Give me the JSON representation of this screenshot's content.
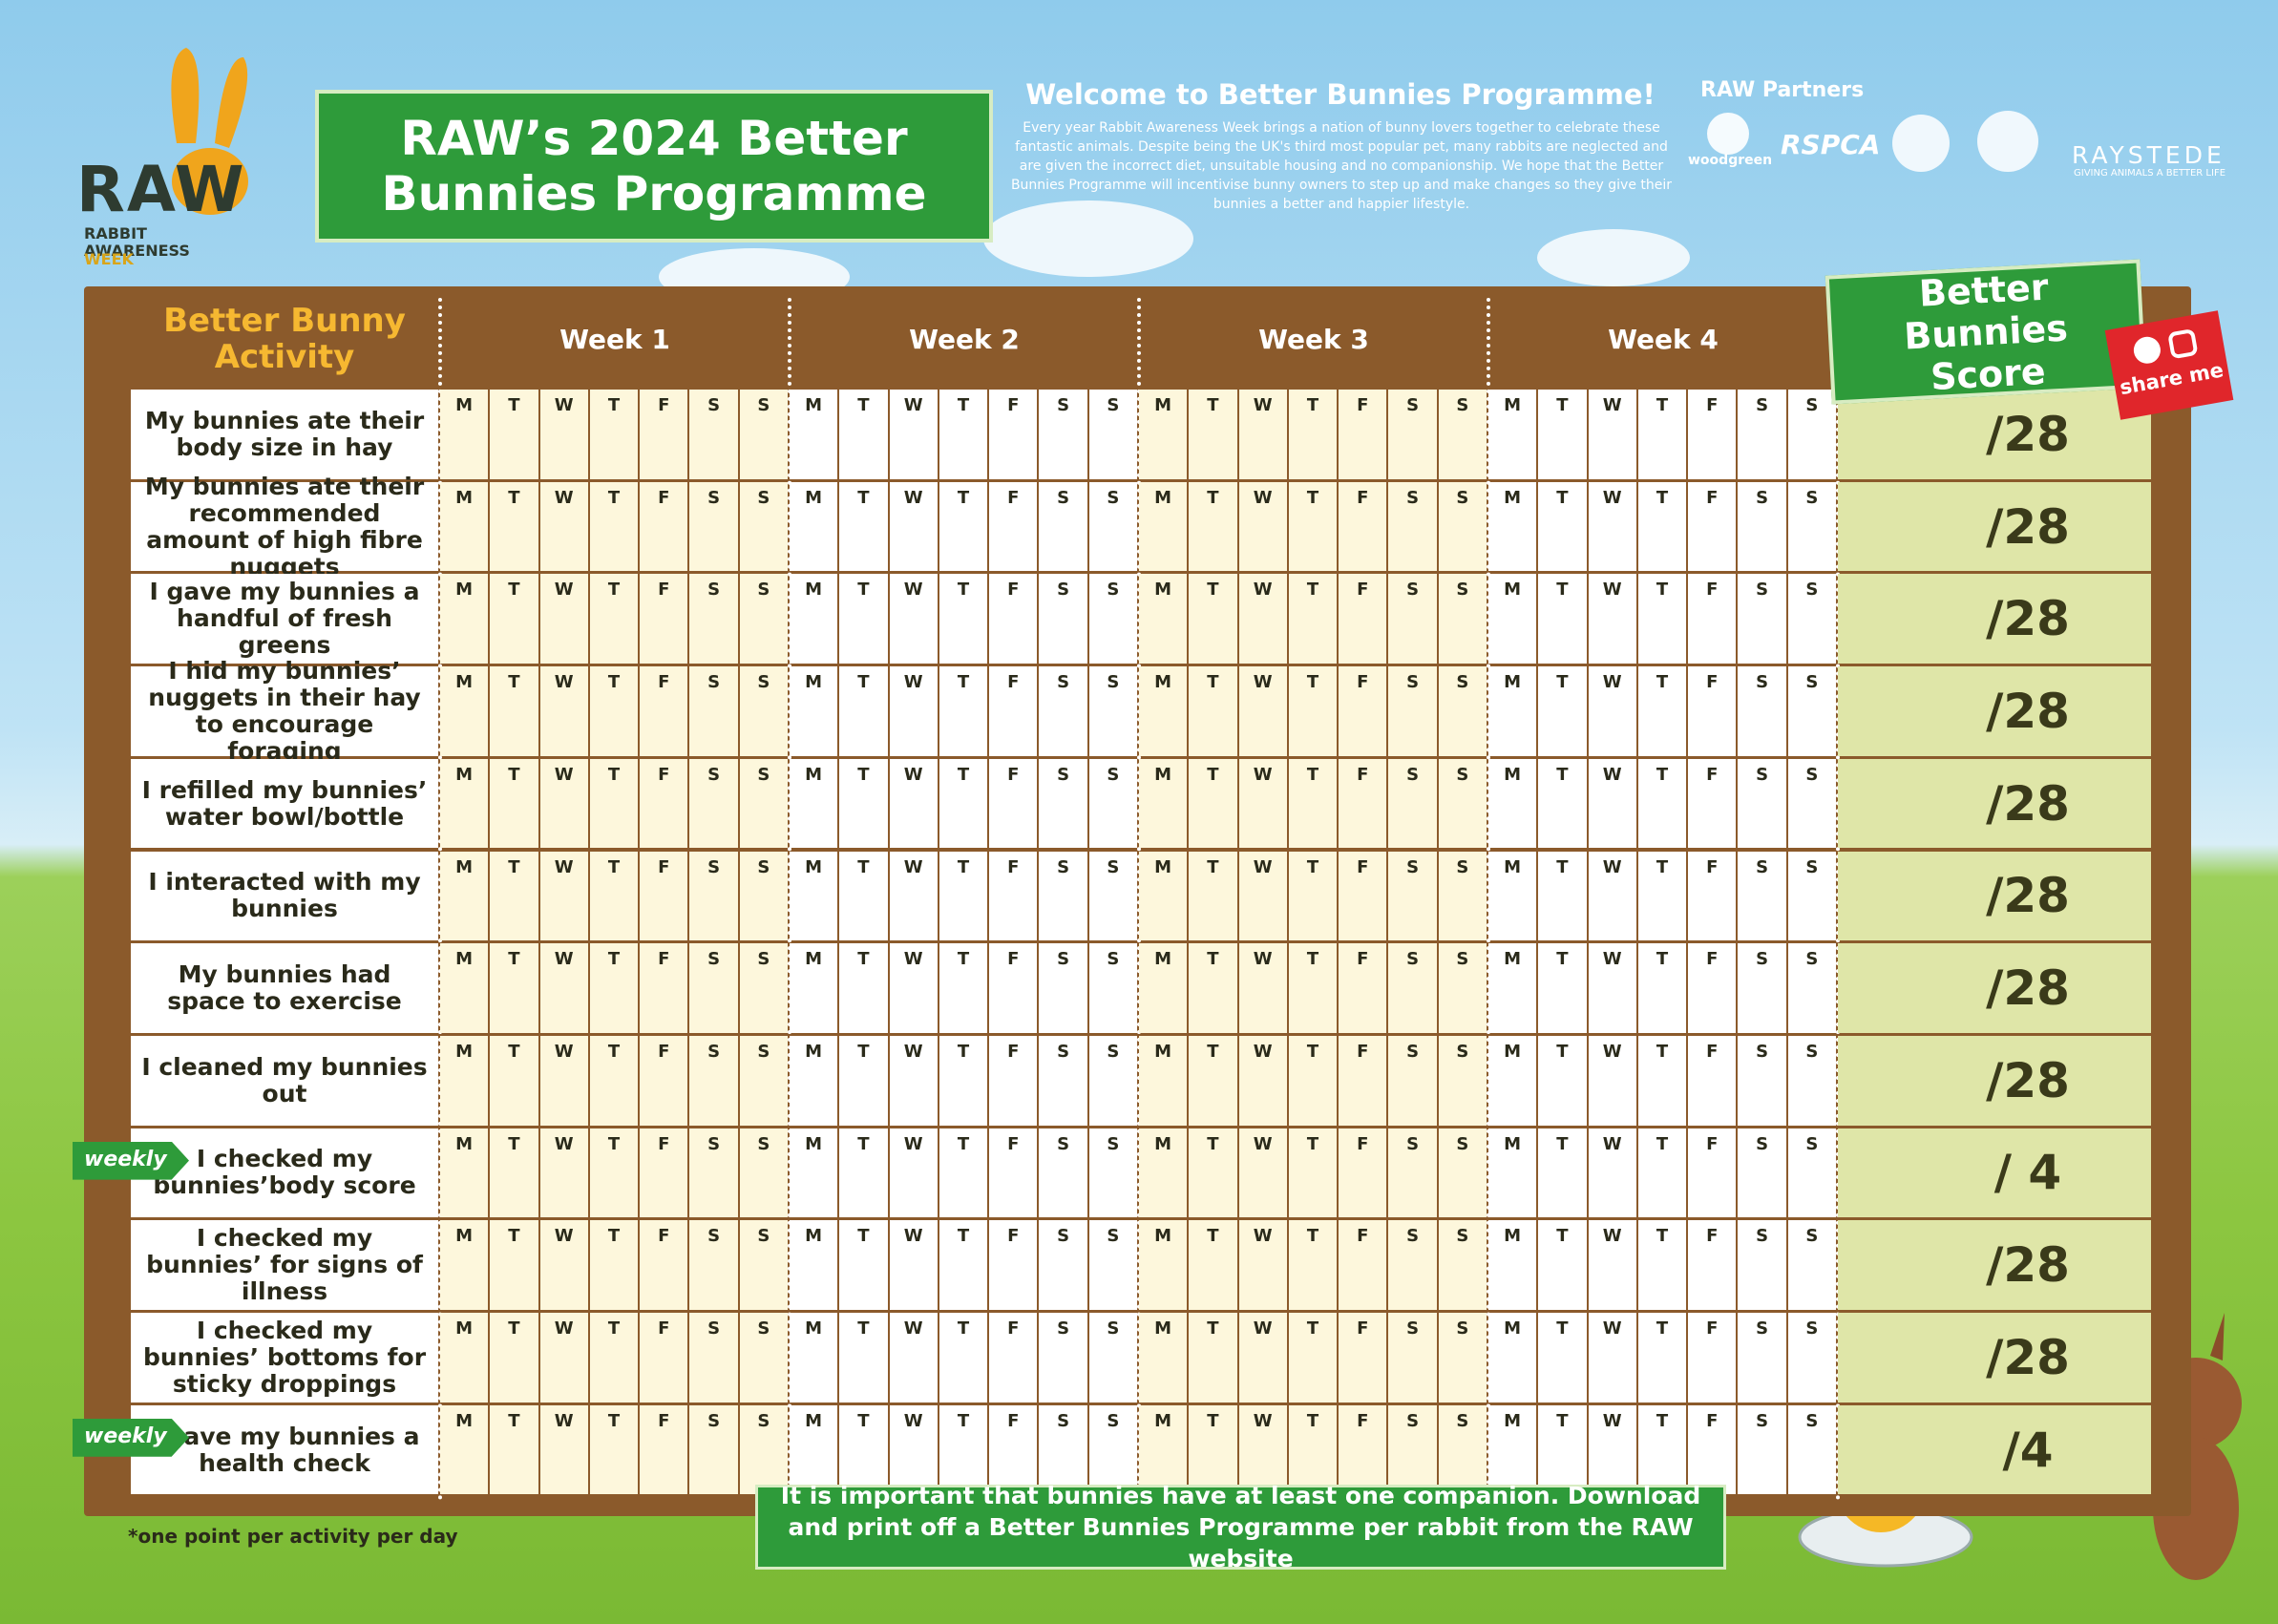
{
  "logo": {
    "name": "RAW",
    "subtitle": "RABBIT AWARENESS",
    "week": "WEEK"
  },
  "header": {
    "title": "RAW’s 2024 Better Bunnies Programme"
  },
  "welcome": {
    "title": "Welcome to Better Bunnies Programme!",
    "text": "Every year Rabbit Awareness Week brings a nation of bunny lovers together to celebrate these fantastic animals. Despite being the UK's third most popular pet, many rabbits are neglected and are given the incorrect diet, unsuitable housing and no companionship. We hope that the Better Bunnies Programme will incentivise bunny owners to step up and make changes so they give their bunnies  a better and happier lifestyle."
  },
  "partners": {
    "label": "RAW Partners",
    "names": [
      "woodgreen",
      "RSPCA",
      "RAYSTEDE"
    ],
    "tagline": "GIVING ANIMALS A BETTER LIFE"
  },
  "table": {
    "activity_header": "Better Bunny Activity",
    "weeks": [
      "Week 1",
      "Week 2",
      "Week 3",
      "Week 4"
    ],
    "score_header": "Better Bunnies Score",
    "days": [
      "M",
      "T",
      "W",
      "T",
      "F",
      "S",
      "S"
    ],
    "rows": [
      {
        "activity": "My bunnies ate their body size in hay",
        "score": "/28"
      },
      {
        "activity": "My bunnies ate their recommended amount of high fibre nuggets",
        "score": "/28"
      },
      {
        "activity": "I gave my bunnies a handful of fresh greens",
        "score": "/28"
      },
      {
        "activity": "I hid my bunnies’ nuggets in their hay to encourage foraging",
        "score": "/28"
      },
      {
        "activity": "I refilled my bunnies’ water bowl/bottle",
        "score": "/28"
      },
      {
        "activity": "I interacted with my bunnies",
        "score": "/28"
      },
      {
        "activity": "My bunnies had space to exercise",
        "score": "/28"
      },
      {
        "activity": "I cleaned my bunnies out",
        "score": "/28"
      },
      {
        "activity": "I checked my bunnies’body score",
        "score": "/ 4",
        "tag": "weekly"
      },
      {
        "activity": "I checked my bunnies’ for signs of illness",
        "score": "/28"
      },
      {
        "activity": "I checked my bunnies’ bottoms for sticky droppings",
        "score": "/28"
      },
      {
        "activity": "I gave my bunnies a health check",
        "score": "/4",
        "tag": "weekly"
      }
    ]
  },
  "share": "share me",
  "footnote": "*one point per activity per day",
  "banner": "It is important that bunnies have at least one companion. Download and print off a Better Bunnies Programme per rabbit from the RAW website"
}
